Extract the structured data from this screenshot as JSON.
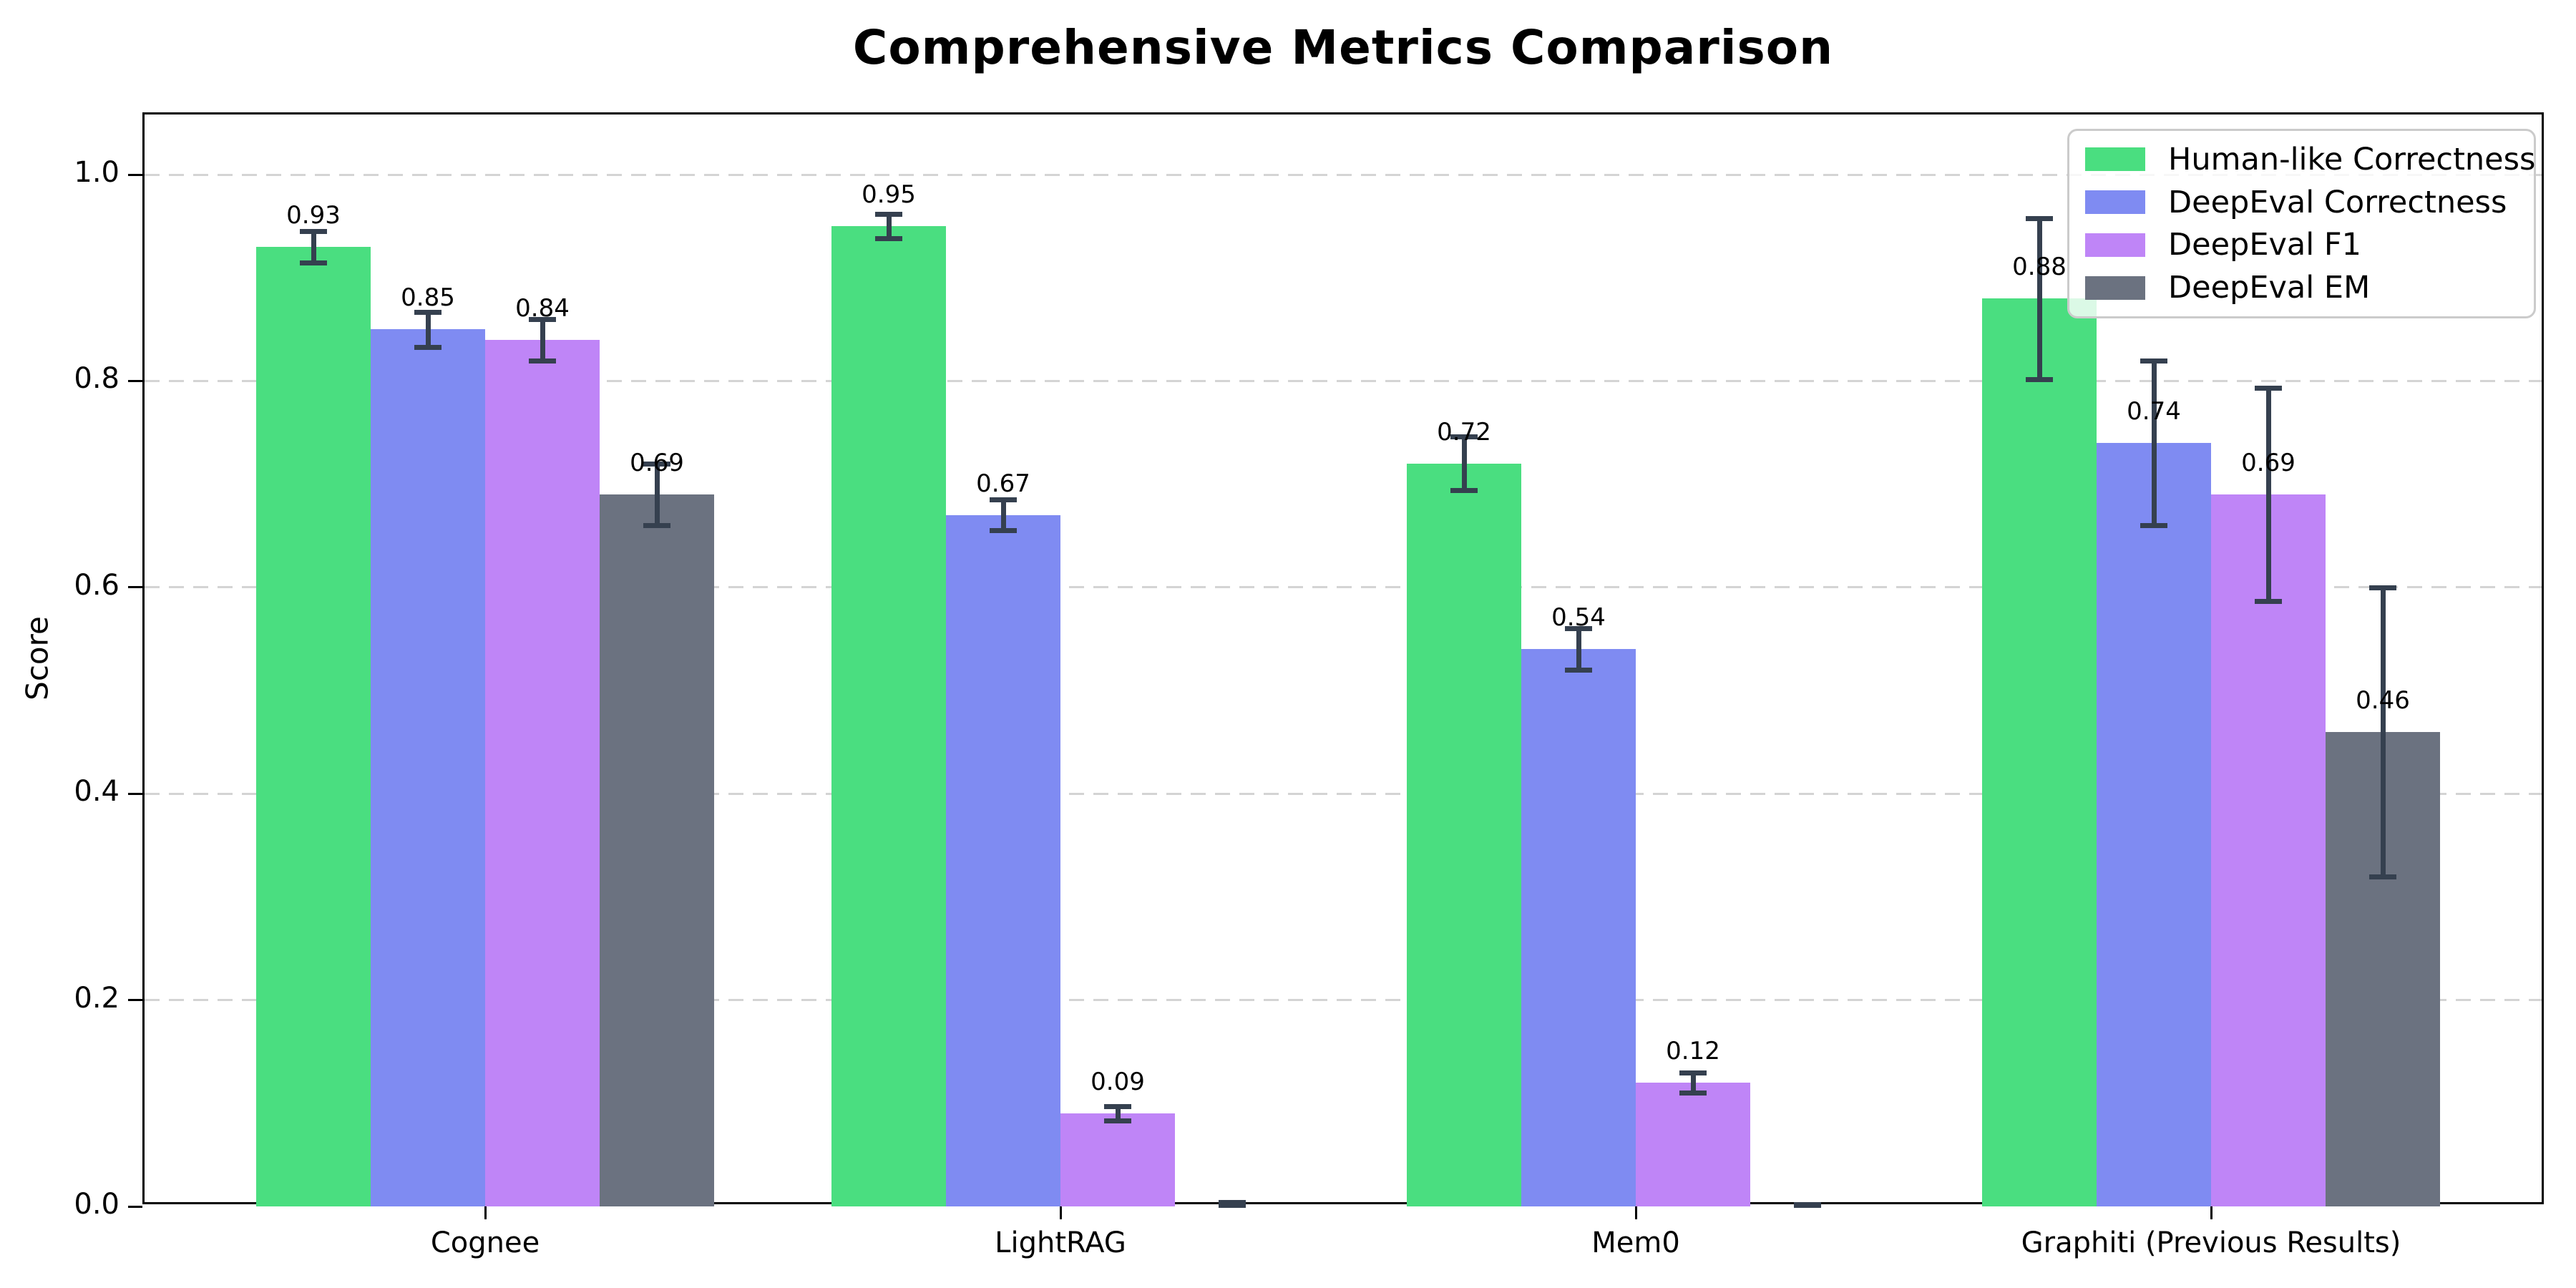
{
  "chart_data": {
    "type": "bar",
    "title": "Comprehensive Metrics Comparison",
    "ylabel": "Score",
    "xlabel": "",
    "categories": [
      "Cognee",
      "LightRAG",
      "Mem0",
      "Graphiti (Previous Results)"
    ],
    "series": [
      {
        "name": "Human-like Correctness",
        "color": "#4ade80",
        "values": [
          0.93,
          0.95,
          0.72,
          0.88
        ],
        "errors": [
          0.015,
          0.012,
          0.026,
          0.078
        ],
        "labels": [
          "0.93",
          "0.95",
          "0.72",
          "0.88"
        ]
      },
      {
        "name": "DeepEval Correctness",
        "color": "#7f8bf2",
        "values": [
          0.85,
          0.67,
          0.54,
          0.74
        ],
        "errors": [
          0.017,
          0.015,
          0.02,
          0.08
        ],
        "labels": [
          "0.85",
          "0.67",
          "0.54",
          "0.74"
        ]
      },
      {
        "name": "DeepEval F1",
        "color": "#bf85f7",
        "values": [
          0.84,
          0.09,
          0.12,
          0.69
        ],
        "errors": [
          0.02,
          0.007,
          0.01,
          0.103
        ],
        "labels": [
          "0.84",
          "0.09",
          "0.12",
          "0.69"
        ]
      },
      {
        "name": "DeepEval EM",
        "color": "#6b7280",
        "values": [
          0.69,
          0.0,
          0.0,
          0.46
        ],
        "errors": [
          0.03,
          0.004,
          0.002,
          0.14
        ],
        "labels": [
          "0.69",
          null,
          null,
          "0.46"
        ]
      }
    ],
    "yticks": [
      "0.0",
      "0.2",
      "0.4",
      "0.6",
      "0.8",
      "1.0"
    ],
    "ytick_values": [
      0.0,
      0.2,
      0.4,
      0.6,
      0.8,
      1.0
    ],
    "ylim": [
      0,
      1.058
    ],
    "grid": "horizontal-dashed",
    "legend_position": "upper-right",
    "colors": {
      "error_bar": "#35404f",
      "axis": "#000000",
      "grid": "#d4d4d4",
      "background": "#ffffff"
    }
  }
}
